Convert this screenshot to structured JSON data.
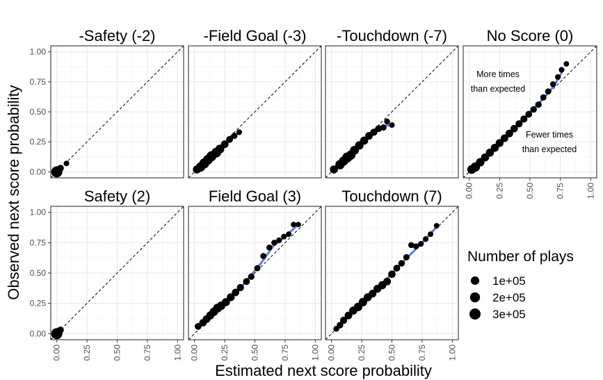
{
  "chart_data": {
    "type": "scatter",
    "x_axis_title": "Estimated next score probability",
    "y_axis_title": "Observed next score probability",
    "xlim": [
      0,
      1
    ],
    "ylim": [
      0,
      1
    ],
    "x_tick_labels": [
      "0.00",
      "0.25",
      "0.50",
      "0.75",
      "1.00"
    ],
    "y_tick_labels": [
      "0.00",
      "0.25",
      "0.50",
      "0.75",
      "1.00"
    ],
    "grid": true,
    "reference_line": "y = x (dashed)",
    "smooth_color": "#4169E1",
    "point_color": "#000000",
    "panels": [
      {
        "title": "-Safety (-2)",
        "points": [
          [
            0.0,
            0.0,
            300000
          ],
          [
            0.03,
            0.03,
            30000
          ],
          [
            0.08,
            0.07,
            5000
          ]
        ],
        "smooth": []
      },
      {
        "title": "-Field Goal (-3)",
        "points": [
          [
            0.02,
            0.02,
            80000
          ],
          [
            0.05,
            0.04,
            150000
          ],
          [
            0.08,
            0.07,
            200000
          ],
          [
            0.11,
            0.1,
            180000
          ],
          [
            0.14,
            0.13,
            200000
          ],
          [
            0.18,
            0.16,
            180000
          ],
          [
            0.21,
            0.19,
            120000
          ],
          [
            0.25,
            0.23,
            60000
          ],
          [
            0.29,
            0.27,
            30000
          ],
          [
            0.33,
            0.3,
            15000
          ],
          [
            0.37,
            0.33,
            5000
          ]
        ],
        "smooth": [
          [
            0.02,
            0.02
          ],
          [
            0.1,
            0.09
          ],
          [
            0.2,
            0.18
          ],
          [
            0.3,
            0.27
          ],
          [
            0.38,
            0.34
          ]
        ]
      },
      {
        "title": "-Touchdown (-7)",
        "points": [
          [
            0.02,
            0.02,
            80000
          ],
          [
            0.07,
            0.06,
            150000
          ],
          [
            0.1,
            0.09,
            150000
          ],
          [
            0.13,
            0.12,
            200000
          ],
          [
            0.16,
            0.14,
            150000
          ],
          [
            0.19,
            0.18,
            120000
          ],
          [
            0.23,
            0.22,
            100000
          ],
          [
            0.27,
            0.26,
            80000
          ],
          [
            0.31,
            0.3,
            60000
          ],
          [
            0.35,
            0.33,
            40000
          ],
          [
            0.39,
            0.36,
            30000
          ],
          [
            0.43,
            0.37,
            15000
          ],
          [
            0.46,
            0.42,
            8000
          ],
          [
            0.5,
            0.39,
            4000
          ]
        ],
        "smooth": [
          [
            0.02,
            0.01
          ],
          [
            0.1,
            0.09
          ],
          [
            0.2,
            0.19
          ],
          [
            0.3,
            0.28
          ],
          [
            0.4,
            0.36
          ],
          [
            0.46,
            0.39
          ],
          [
            0.51,
            0.38
          ]
        ]
      },
      {
        "title": "No Score (0)",
        "points": [
          [
            0.02,
            0.02,
            120000
          ],
          [
            0.05,
            0.04,
            150000
          ],
          [
            0.09,
            0.08,
            100000
          ],
          [
            0.13,
            0.12,
            80000
          ],
          [
            0.17,
            0.16,
            80000
          ],
          [
            0.21,
            0.2,
            80000
          ],
          [
            0.25,
            0.24,
            70000
          ],
          [
            0.29,
            0.28,
            60000
          ],
          [
            0.33,
            0.32,
            60000
          ],
          [
            0.37,
            0.36,
            50000
          ],
          [
            0.41,
            0.4,
            40000
          ],
          [
            0.45,
            0.44,
            40000
          ],
          [
            0.49,
            0.48,
            30000
          ],
          [
            0.53,
            0.52,
            20000
          ],
          [
            0.57,
            0.56,
            20000
          ],
          [
            0.61,
            0.62,
            15000
          ],
          [
            0.65,
            0.67,
            12000
          ],
          [
            0.69,
            0.73,
            8000
          ],
          [
            0.73,
            0.79,
            6000
          ],
          [
            0.76,
            0.85,
            4000
          ],
          [
            0.8,
            0.9,
            3000
          ]
        ],
        "smooth": [
          [
            0.01,
            0.01
          ],
          [
            0.2,
            0.19
          ],
          [
            0.4,
            0.39
          ],
          [
            0.6,
            0.6
          ],
          [
            0.7,
            0.72
          ],
          [
            0.78,
            0.86
          ]
        ],
        "annotations": [
          {
            "text_lines": [
              "More times",
              "than expected"
            ]
          },
          {
            "text_lines": [
              "Fewer times",
              "than expected"
            ]
          }
        ]
      },
      {
        "title": "Safety (2)",
        "points": [
          [
            0.0,
            0.0,
            300000
          ],
          [
            0.03,
            0.03,
            30000
          ]
        ],
        "smooth": []
      },
      {
        "title": "Field Goal (3)",
        "points": [
          [
            0.03,
            0.06,
            30000
          ],
          [
            0.07,
            0.09,
            50000
          ],
          [
            0.1,
            0.12,
            60000
          ],
          [
            0.13,
            0.15,
            80000
          ],
          [
            0.16,
            0.18,
            100000
          ],
          [
            0.19,
            0.21,
            120000
          ],
          [
            0.22,
            0.23,
            100000
          ],
          [
            0.26,
            0.26,
            80000
          ],
          [
            0.3,
            0.3,
            70000
          ],
          [
            0.34,
            0.34,
            50000
          ],
          [
            0.38,
            0.38,
            40000
          ],
          [
            0.43,
            0.43,
            30000
          ],
          [
            0.47,
            0.47,
            20000
          ],
          [
            0.52,
            0.54,
            15000
          ],
          [
            0.57,
            0.64,
            12000
          ],
          [
            0.62,
            0.71,
            10000
          ],
          [
            0.66,
            0.75,
            8000
          ],
          [
            0.7,
            0.77,
            6000
          ],
          [
            0.74,
            0.8,
            5000
          ],
          [
            0.78,
            0.82,
            4000
          ],
          [
            0.82,
            0.9,
            3000
          ],
          [
            0.86,
            0.9,
            2000
          ]
        ],
        "smooth": [
          [
            0.03,
            0.06
          ],
          [
            0.2,
            0.2
          ],
          [
            0.4,
            0.4
          ],
          [
            0.55,
            0.58
          ],
          [
            0.65,
            0.72
          ],
          [
            0.75,
            0.8
          ],
          [
            0.87,
            0.91
          ]
        ]
      },
      {
        "title": "Touchdown (7)",
        "points": [
          [
            0.04,
            0.04,
            8000
          ],
          [
            0.07,
            0.07,
            20000
          ],
          [
            0.1,
            0.11,
            40000
          ],
          [
            0.14,
            0.15,
            60000
          ],
          [
            0.18,
            0.19,
            80000
          ],
          [
            0.22,
            0.22,
            100000
          ],
          [
            0.26,
            0.26,
            100000
          ],
          [
            0.3,
            0.3,
            80000
          ],
          [
            0.34,
            0.33,
            60000
          ],
          [
            0.38,
            0.37,
            70000
          ],
          [
            0.42,
            0.4,
            80000
          ],
          [
            0.46,
            0.43,
            60000
          ],
          [
            0.5,
            0.49,
            50000
          ],
          [
            0.54,
            0.54,
            30000
          ],
          [
            0.58,
            0.58,
            20000
          ],
          [
            0.62,
            0.63,
            15000
          ],
          [
            0.66,
            0.73,
            10000
          ],
          [
            0.7,
            0.72,
            8000
          ],
          [
            0.74,
            0.74,
            6000
          ],
          [
            0.78,
            0.78,
            5000
          ],
          [
            0.82,
            0.82,
            4000
          ],
          [
            0.87,
            0.89,
            3000
          ]
        ],
        "smooth": [
          [
            0.04,
            0.04
          ],
          [
            0.2,
            0.2
          ],
          [
            0.4,
            0.39
          ],
          [
            0.6,
            0.6
          ],
          [
            0.75,
            0.75
          ],
          [
            0.88,
            0.89
          ]
        ]
      }
    ],
    "legend": {
      "title": "Number of plays",
      "placement": "right",
      "entries": [
        {
          "label": "1e+05",
          "value": 100000
        },
        {
          "label": "2e+05",
          "value": 200000
        },
        {
          "label": "3e+05",
          "value": 300000
        }
      ]
    }
  }
}
